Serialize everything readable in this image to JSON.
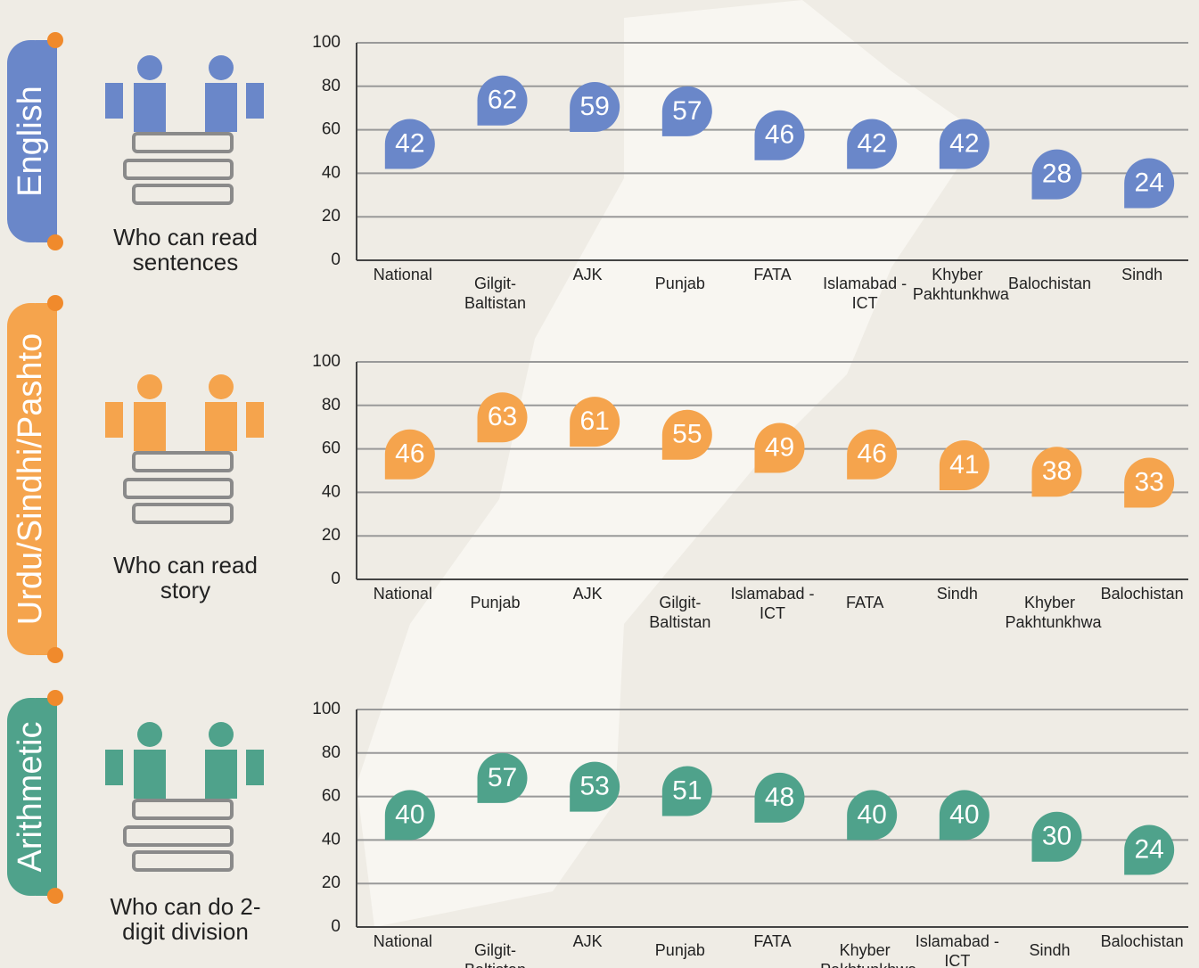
{
  "chart_data": [
    {
      "type": "dot",
      "label": "English",
      "caption": "Who can read sentences",
      "color": "#6a87c9",
      "categories": [
        "National",
        "Gilgit-Baltistan",
        "AJK",
        "Punjab",
        "FATA",
        "Islamabad -ICT",
        "Khyber Pakhtunkhwa",
        "Balochistan",
        "Sindh"
      ],
      "values": [
        42,
        62,
        59,
        57,
        46,
        42,
        42,
        28,
        24
      ],
      "ylim": [
        0,
        100
      ],
      "yticks": [
        0,
        20,
        40,
        60,
        80,
        100
      ],
      "grid": true
    },
    {
      "type": "dot",
      "label": "Urdu/Sindhi/Pashto",
      "caption": "Who can read story",
      "color": "#f5a44d",
      "categories": [
        "National",
        "Punjab",
        "AJK",
        "Gilgit-Baltistan",
        "Islamabad -ICT",
        "FATA",
        "Sindh",
        "Khyber Pakhtunkhwa",
        "Balochistan"
      ],
      "values": [
        46,
        63,
        61,
        55,
        49,
        46,
        41,
        38,
        33
      ],
      "ylim": [
        0,
        100
      ],
      "yticks": [
        0,
        20,
        40,
        60,
        80,
        100
      ],
      "grid": true
    },
    {
      "type": "dot",
      "label": "Arithmetic",
      "caption": "Who can do 2-digit division",
      "color": "#4fa28b",
      "categories": [
        "National",
        "Gilgit-Baltistan",
        "AJK",
        "Punjab",
        "FATA",
        "Khyber Pakhtunkhwa",
        "Islamabad -ICT",
        "Sindh",
        "Balochistan"
      ],
      "values": [
        40,
        57,
        53,
        51,
        48,
        40,
        40,
        30,
        24
      ],
      "ylim": [
        0,
        100
      ],
      "yticks": [
        0,
        20,
        40,
        60,
        80,
        100
      ],
      "grid": true
    }
  ]
}
